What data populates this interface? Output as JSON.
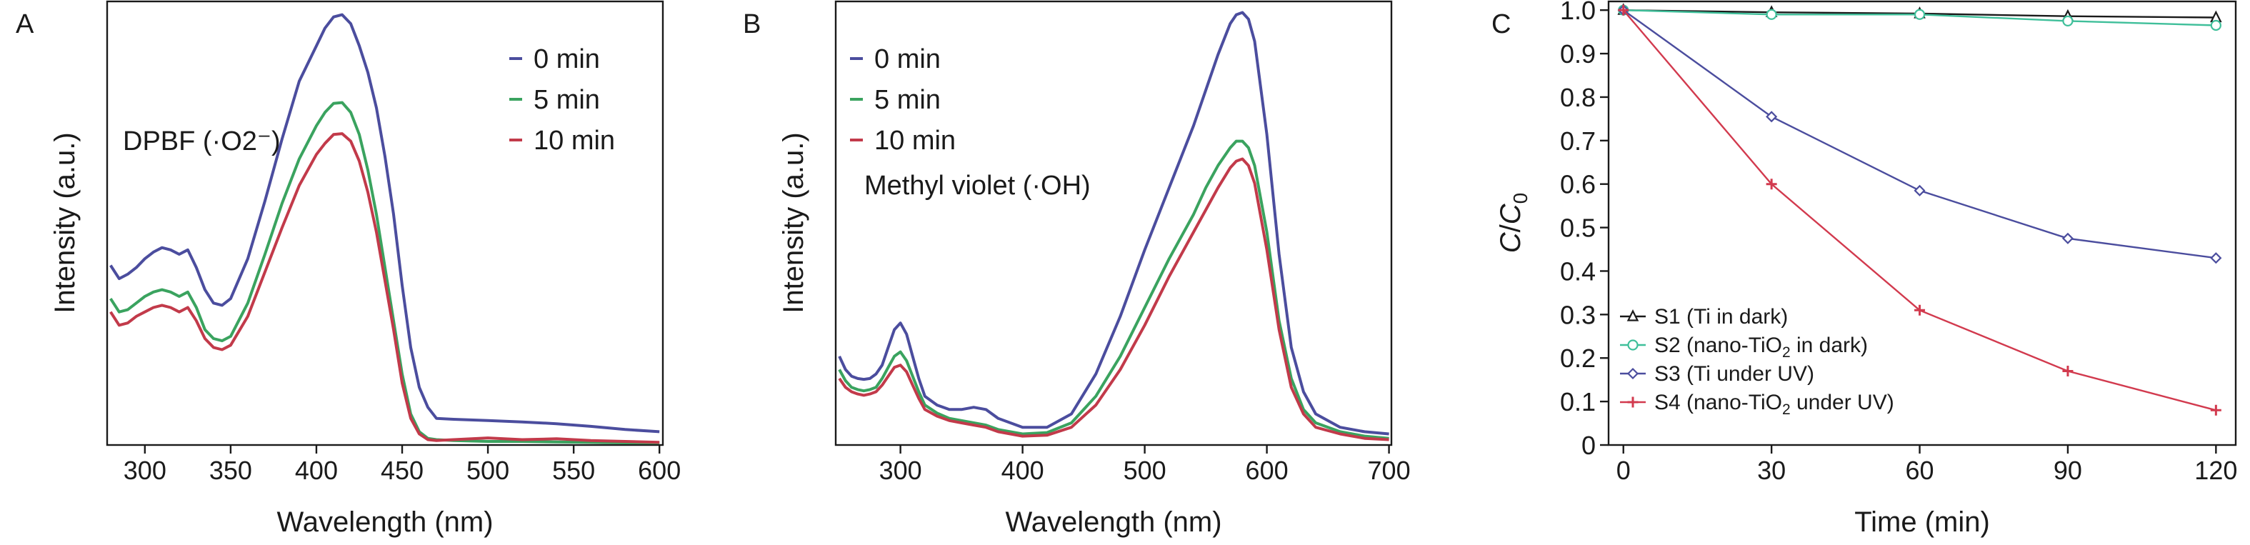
{
  "chart_data": [
    {
      "panel": "A",
      "type": "line",
      "xlabel": "Wavelength (nm)",
      "ylabel": "Intensity (a.u.)",
      "xlim": [
        278,
        602
      ],
      "ylim": [
        0,
        1
      ],
      "xticks": [
        300,
        350,
        400,
        450,
        500,
        550,
        600
      ],
      "yticks_shown": false,
      "annotation": "DPBF (·O2⁻)",
      "legend": {
        "placement": "top-right",
        "entries": [
          "0 min",
          "5 min",
          "10 min"
        ]
      },
      "series": [
        {
          "name": "0 min",
          "color": "#4b4d9e",
          "x": [
            280,
            285,
            290,
            295,
            300,
            305,
            310,
            315,
            320,
            325,
            330,
            335,
            340,
            345,
            350,
            360,
            370,
            380,
            390,
            400,
            405,
            410,
            415,
            420,
            425,
            430,
            435,
            440,
            445,
            450,
            455,
            460,
            465,
            470,
            480,
            500,
            520,
            540,
            560,
            580,
            600
          ],
          "y": [
            0.405,
            0.375,
            0.385,
            0.4,
            0.42,
            0.435,
            0.445,
            0.44,
            0.43,
            0.44,
            0.4,
            0.35,
            0.32,
            0.315,
            0.33,
            0.42,
            0.55,
            0.69,
            0.82,
            0.9,
            0.94,
            0.965,
            0.97,
            0.95,
            0.9,
            0.84,
            0.76,
            0.65,
            0.52,
            0.36,
            0.22,
            0.13,
            0.085,
            0.06,
            0.058,
            0.055,
            0.052,
            0.048,
            0.042,
            0.035,
            0.03
          ]
        },
        {
          "name": "5 min",
          "color": "#3aa35f",
          "x": [
            280,
            285,
            290,
            295,
            300,
            305,
            310,
            315,
            320,
            325,
            330,
            335,
            340,
            345,
            350,
            360,
            370,
            380,
            390,
            400,
            405,
            410,
            415,
            420,
            425,
            430,
            435,
            440,
            445,
            450,
            455,
            460,
            465,
            470,
            480,
            500,
            520,
            540,
            560,
            580,
            600
          ],
          "y": [
            0.33,
            0.3,
            0.305,
            0.32,
            0.335,
            0.345,
            0.35,
            0.345,
            0.335,
            0.345,
            0.31,
            0.26,
            0.24,
            0.235,
            0.245,
            0.32,
            0.43,
            0.545,
            0.645,
            0.72,
            0.75,
            0.77,
            0.772,
            0.75,
            0.7,
            0.62,
            0.52,
            0.4,
            0.28,
            0.16,
            0.07,
            0.03,
            0.015,
            0.012,
            0.01,
            0.008,
            0.008,
            0.007,
            0.006,
            0.005,
            0.005
          ]
        },
        {
          "name": "10 min",
          "color": "#c23a4a",
          "x": [
            280,
            285,
            290,
            295,
            300,
            305,
            310,
            315,
            320,
            325,
            330,
            335,
            340,
            345,
            350,
            360,
            370,
            380,
            390,
            400,
            405,
            410,
            415,
            420,
            425,
            430,
            435,
            440,
            445,
            450,
            455,
            460,
            465,
            470,
            480,
            500,
            520,
            540,
            560,
            580,
            600
          ],
          "y": [
            0.3,
            0.27,
            0.275,
            0.29,
            0.3,
            0.31,
            0.315,
            0.31,
            0.3,
            0.31,
            0.28,
            0.24,
            0.22,
            0.215,
            0.225,
            0.29,
            0.39,
            0.49,
            0.585,
            0.655,
            0.68,
            0.7,
            0.702,
            0.685,
            0.64,
            0.57,
            0.48,
            0.37,
            0.26,
            0.14,
            0.06,
            0.025,
            0.012,
            0.01,
            0.012,
            0.016,
            0.012,
            0.014,
            0.01,
            0.008,
            0.006
          ]
        }
      ]
    },
    {
      "panel": "B",
      "type": "line",
      "xlabel": "Wavelength (nm)",
      "ylabel": "Intensity (a.u.)",
      "xlim": [
        247,
        702
      ],
      "ylim": [
        0,
        1
      ],
      "xticks": [
        300,
        400,
        500,
        600,
        700
      ],
      "yticks_shown": false,
      "annotation": "Methyl violet (·OH)",
      "legend": {
        "placement": "top-left",
        "entries": [
          "0 min",
          "5 min",
          "10 min"
        ]
      },
      "series": [
        {
          "name": "0 min",
          "color": "#4b4d9e",
          "x": [
            250,
            255,
            260,
            265,
            270,
            275,
            280,
            285,
            290,
            295,
            300,
            305,
            310,
            315,
            320,
            330,
            340,
            350,
            360,
            370,
            380,
            400,
            420,
            440,
            460,
            480,
            500,
            520,
            540,
            550,
            560,
            570,
            575,
            580,
            585,
            590,
            600,
            610,
            620,
            630,
            640,
            660,
            680,
            700
          ],
          "y": [
            0.2,
            0.17,
            0.155,
            0.15,
            0.148,
            0.15,
            0.16,
            0.18,
            0.22,
            0.26,
            0.275,
            0.25,
            0.2,
            0.15,
            0.11,
            0.09,
            0.08,
            0.08,
            0.085,
            0.08,
            0.06,
            0.04,
            0.04,
            0.07,
            0.16,
            0.29,
            0.44,
            0.58,
            0.72,
            0.8,
            0.88,
            0.95,
            0.97,
            0.975,
            0.96,
            0.91,
            0.7,
            0.43,
            0.22,
            0.12,
            0.07,
            0.04,
            0.03,
            0.025
          ]
        },
        {
          "name": "5 min",
          "color": "#3aa35f",
          "x": [
            250,
            255,
            260,
            265,
            270,
            275,
            280,
            285,
            290,
            295,
            300,
            305,
            310,
            315,
            320,
            330,
            340,
            350,
            360,
            370,
            380,
            400,
            420,
            440,
            460,
            480,
            500,
            520,
            540,
            550,
            560,
            570,
            575,
            580,
            585,
            590,
            600,
            610,
            620,
            630,
            640,
            660,
            680,
            700
          ],
          "y": [
            0.17,
            0.145,
            0.13,
            0.125,
            0.122,
            0.125,
            0.13,
            0.15,
            0.175,
            0.2,
            0.21,
            0.19,
            0.155,
            0.12,
            0.09,
            0.072,
            0.06,
            0.055,
            0.05,
            0.045,
            0.035,
            0.025,
            0.028,
            0.05,
            0.11,
            0.2,
            0.31,
            0.42,
            0.52,
            0.58,
            0.63,
            0.67,
            0.685,
            0.685,
            0.67,
            0.63,
            0.48,
            0.28,
            0.15,
            0.08,
            0.05,
            0.03,
            0.02,
            0.015
          ]
        },
        {
          "name": "10 min",
          "color": "#c23a4a",
          "x": [
            250,
            255,
            260,
            265,
            270,
            275,
            280,
            285,
            290,
            295,
            300,
            305,
            310,
            315,
            320,
            330,
            340,
            350,
            360,
            370,
            380,
            400,
            420,
            440,
            460,
            480,
            500,
            520,
            540,
            550,
            560,
            570,
            575,
            580,
            585,
            590,
            600,
            610,
            620,
            630,
            640,
            660,
            680,
            700
          ],
          "y": [
            0.15,
            0.13,
            0.12,
            0.115,
            0.112,
            0.115,
            0.12,
            0.135,
            0.155,
            0.175,
            0.18,
            0.165,
            0.135,
            0.105,
            0.08,
            0.065,
            0.055,
            0.05,
            0.045,
            0.04,
            0.03,
            0.02,
            0.022,
            0.04,
            0.09,
            0.17,
            0.27,
            0.38,
            0.48,
            0.53,
            0.58,
            0.625,
            0.64,
            0.645,
            0.63,
            0.59,
            0.44,
            0.26,
            0.13,
            0.07,
            0.04,
            0.025,
            0.015,
            0.012
          ]
        }
      ]
    },
    {
      "panel": "C",
      "type": "line",
      "xlabel": "Time (min)",
      "ylabel_main": "C",
      "ylabel_sep": "/",
      "ylabel_sub": "0",
      "xlim": [
        -3,
        124
      ],
      "ylim": [
        0,
        1.02
      ],
      "xticks": [
        0,
        30,
        60,
        90,
        120
      ],
      "yticks": [
        0,
        0.1,
        0.2,
        0.3,
        0.4,
        0.5,
        0.6,
        0.7,
        0.8,
        0.9,
        1.0
      ],
      "ytick_labels": [
        "0",
        "0.1",
        "0.2",
        "0.3",
        "0.4",
        "0.5",
        "0.6",
        "0.7",
        "0.8",
        "0.9",
        "1.0"
      ],
      "legend": {
        "placement": "bottom-left"
      },
      "series": [
        {
          "name": "S1 (Ti in dark)",
          "color": "#1a1a1a",
          "marker": "triangle",
          "x": [
            0,
            30,
            60,
            90,
            120
          ],
          "y": [
            1.0,
            0.995,
            0.992,
            0.986,
            0.983
          ]
        },
        {
          "name": "S2 (nano-TiO2 in dark)",
          "color": "#3fbf9a",
          "marker": "circle",
          "label_pre": "S2 (nano-TiO",
          "label_sub": "2",
          "label_post": " in dark)",
          "x": [
            0,
            30,
            60,
            90,
            120
          ],
          "y": [
            1.0,
            0.99,
            0.99,
            0.975,
            0.965
          ]
        },
        {
          "name": "S3 (Ti under UV)",
          "color": "#4b4d9e",
          "marker": "diamond",
          "x": [
            0,
            30,
            60,
            90,
            120
          ],
          "y": [
            1.0,
            0.755,
            0.585,
            0.475,
            0.43
          ]
        },
        {
          "name": "S4 (nano-TiO2 under UV)",
          "color": "#d23a4e",
          "marker": "plus",
          "label_pre": "S4 (nano-TiO",
          "label_sub": "2",
          "label_post": " under UV)",
          "x": [
            0,
            30,
            60,
            90,
            120
          ],
          "y": [
            1.0,
            0.6,
            0.31,
            0.17,
            0.08
          ]
        }
      ]
    }
  ],
  "panels": {
    "a": {
      "letter": "A"
    },
    "b": {
      "letter": "B"
    },
    "c": {
      "letter": "C"
    }
  }
}
